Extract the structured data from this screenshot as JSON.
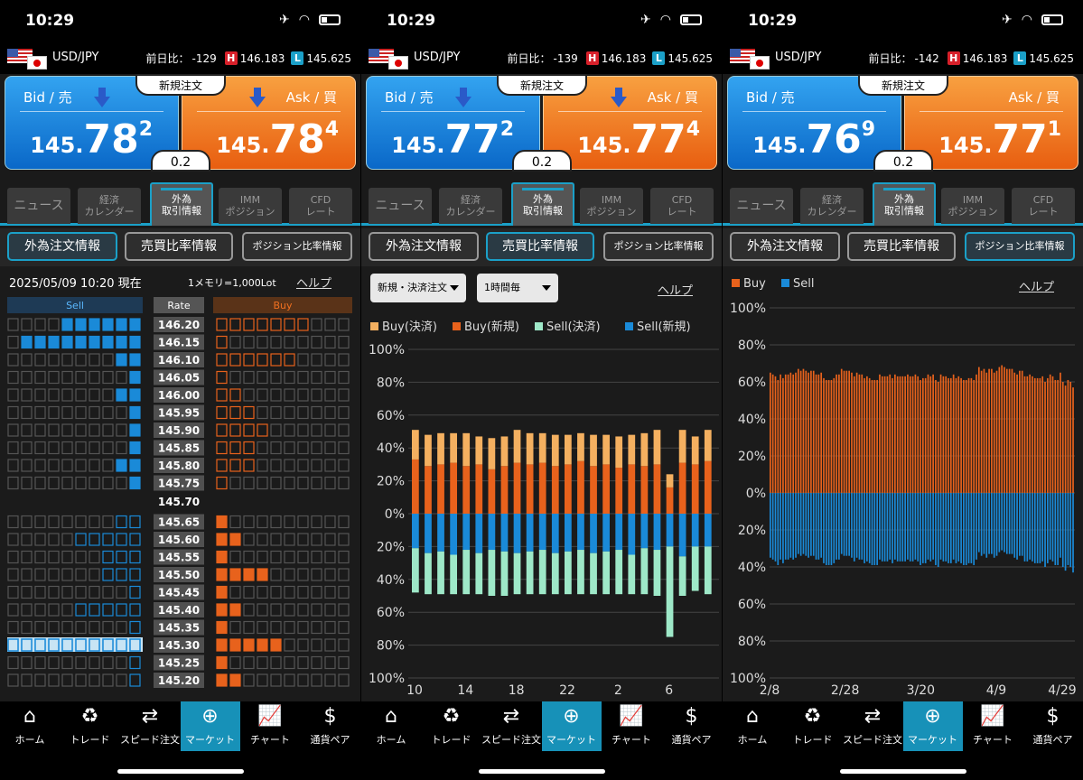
{
  "status_time": "10:29",
  "pair": "USD/JPY",
  "prev_label": "前日比：",
  "h_badge": "H",
  "l_badge": "L",
  "high": "146.183",
  "low": "145.625",
  "bid_label": "Bid / 売",
  "ask_label": "Ask / 買",
  "new_order": "新規注文",
  "spread": "0.2",
  "tabs": [
    "ニュース",
    "経済\nカレンダー",
    "外為\n取引情報",
    "IMM\nポジション",
    "CFD\nレート"
  ],
  "subtabs": [
    "外為注文情報",
    "売買比率情報",
    "ポジション比率情報"
  ],
  "help": "ヘルプ",
  "nav": [
    "ホーム",
    "トレード",
    "スピード注文",
    "マーケット",
    "チャート",
    "通貨ペア"
  ],
  "colors": {
    "orange": "#e8621c",
    "blue": "#1a8ad8",
    "light_orange": "#f4b060",
    "light_green": "#9ee8c8",
    "accent": "#1ba0c8"
  },
  "panels": [
    {
      "prev": "-129",
      "bid": {
        "big": "145.",
        "mid": "78",
        "small": "2"
      },
      "ask": {
        "big": "145.",
        "mid": "78",
        "small": "4"
      },
      "active_sub": 0
    },
    {
      "prev": "-139",
      "bid": {
        "big": "145.",
        "mid": "77",
        "small": "2"
      },
      "ask": {
        "big": "145.",
        "mid": "77",
        "small": "4"
      },
      "active_sub": 1
    },
    {
      "prev": "-142",
      "bid": {
        "big": "145.",
        "mid": "76",
        "small": "9"
      },
      "ask": {
        "big": "145.",
        "mid": "77",
        "small": "1"
      },
      "active_sub": 2
    }
  ],
  "ladder": {
    "datetime": "2025/05/09 10:20 現在",
    "memo": "1メモリ=1,000Lot",
    "sell_label": "Sell",
    "rate_label": "Rate",
    "buy_label": "Buy",
    "current_rate": "145.70",
    "rows_top": [
      {
        "rate": "146.20",
        "sell": 6,
        "sell_style": "filled",
        "buy": 7
      },
      {
        "rate": "146.15",
        "sell": 9,
        "sell_style": "filled",
        "buy": 1
      },
      {
        "rate": "146.10",
        "sell": 2,
        "sell_style": "filled",
        "buy": 6
      },
      {
        "rate": "146.05",
        "sell": 1,
        "sell_style": "filled",
        "buy": 1
      },
      {
        "rate": "146.00",
        "sell": 2,
        "sell_style": "filled",
        "buy": 2
      },
      {
        "rate": "145.95",
        "sell": 1,
        "sell_style": "filled",
        "buy": 3
      },
      {
        "rate": "145.90",
        "sell": 1,
        "sell_style": "filled",
        "buy": 4
      },
      {
        "rate": "145.85",
        "sell": 1,
        "sell_style": "filled",
        "buy": 3
      },
      {
        "rate": "145.80",
        "sell": 2,
        "sell_style": "filled",
        "buy": 3
      },
      {
        "rate": "145.75",
        "sell": 1,
        "sell_style": "filled",
        "buy": 1
      }
    ],
    "rows_bottom": [
      {
        "rate": "145.65",
        "sell": 2,
        "buy": 1
      },
      {
        "rate": "145.60",
        "sell": 5,
        "buy": 2
      },
      {
        "rate": "145.55",
        "sell": 3,
        "buy": 1
      },
      {
        "rate": "145.50",
        "sell": 3,
        "buy": 4
      },
      {
        "rate": "145.45",
        "sell": 1,
        "buy": 1
      },
      {
        "rate": "145.40",
        "sell": 5,
        "buy": 2
      },
      {
        "rate": "145.35",
        "sell": 1,
        "buy": 1
      },
      {
        "rate": "145.30",
        "sell": 15,
        "buy": 5,
        "sell_highlight": true
      },
      {
        "rate": "145.25",
        "sell": 1,
        "buy": 1
      },
      {
        "rate": "145.20",
        "sell": 1,
        "buy": 2
      }
    ]
  },
  "ratio": {
    "filter1": "新規・決済注文",
    "filter2": "1時間毎",
    "legend": [
      "Buy(決済)",
      "Buy(新規)",
      "Sell(決済)",
      "Sell(新規)"
    ]
  },
  "position": {
    "legend": [
      "Buy",
      "Sell"
    ]
  },
  "chart_data": [
    {
      "type": "bar",
      "title": "売買比率情報",
      "yticks": [
        "100%",
        "80%",
        "60%",
        "40%",
        "20%",
        "0%",
        "20%",
        "40%",
        "60%",
        "80%",
        "100%"
      ],
      "xticks": [
        "10",
        "14",
        "18",
        "22",
        "2",
        "6"
      ],
      "series": [
        {
          "name": "Buy(決済)",
          "values": [
            18,
            19,
            19,
            18,
            20,
            17,
            19,
            18,
            20,
            19,
            18,
            19,
            18,
            17,
            19,
            18,
            19,
            18,
            20,
            21,
            8,
            20,
            17,
            19
          ]
        },
        {
          "name": "Buy(新規)",
          "values": [
            33,
            29,
            30,
            31,
            29,
            30,
            27,
            29,
            31,
            30,
            31,
            29,
            30,
            32,
            29,
            30,
            28,
            30,
            29,
            30,
            16,
            31,
            30,
            32
          ]
        },
        {
          "name": "Sell(決済)",
          "values": [
            -27,
            -25,
            -26,
            -24,
            -27,
            -25,
            -28,
            -27,
            -25,
            -26,
            -27,
            -25,
            -26,
            -27,
            -25,
            -26,
            -27,
            -24,
            -28,
            -28,
            -55,
            -24,
            -27,
            -29
          ]
        },
        {
          "name": "Sell(新規)",
          "values": [
            -21,
            -24,
            -23,
            -25,
            -22,
            -24,
            -22,
            -23,
            -24,
            -23,
            -22,
            -24,
            -23,
            -22,
            -24,
            -23,
            -22,
            -25,
            -21,
            -22,
            -20,
            -26,
            -20,
            -20
          ]
        }
      ]
    },
    {
      "type": "bar",
      "title": "ポジション比率情報",
      "yticks": [
        "100%",
        "80%",
        "60%",
        "40%",
        "20%",
        "0%",
        "20%",
        "40%",
        "60%",
        "80%",
        "100%"
      ],
      "xticks": [
        "2/8",
        "2/28",
        "3/20",
        "4/9",
        "4/29"
      ],
      "series": [
        {
          "name": "Buy",
          "values": [
            65,
            64,
            63,
            61,
            64,
            62,
            64,
            64,
            65,
            64,
            65,
            67,
            66,
            67,
            66,
            65,
            66,
            66,
            64,
            64,
            65,
            62,
            61,
            61,
            61,
            62,
            64,
            64,
            67,
            66,
            66,
            66,
            65,
            63,
            65,
            64,
            64,
            62,
            63,
            62,
            61,
            61,
            61,
            64,
            63,
            63,
            63,
            64,
            62,
            64,
            63,
            63,
            63,
            63,
            64,
            63,
            63,
            64,
            63,
            61,
            62,
            62,
            64,
            63,
            64,
            61,
            60,
            64,
            63,
            63,
            62,
            62,
            64,
            62,
            63,
            62,
            61,
            61,
            62,
            62,
            61,
            64,
            68,
            66,
            67,
            65,
            67,
            67,
            65,
            66,
            68,
            69,
            68,
            67,
            67,
            67,
            65,
            64,
            66,
            66,
            63,
            63,
            64,
            63,
            62,
            62,
            62,
            63,
            60,
            62,
            64,
            63,
            61,
            61,
            65,
            60,
            58,
            61,
            60,
            57
          ]
        },
        {
          "name": "Sell",
          "values": [
            -35,
            -36,
            -37,
            -39,
            -36,
            -38,
            -36,
            -36,
            -35,
            -36,
            -35,
            -33,
            -34,
            -33,
            -34,
            -35,
            -34,
            -34,
            -36,
            -36,
            -35,
            -38,
            -39,
            -39,
            -39,
            -38,
            -36,
            -36,
            -33,
            -34,
            -34,
            -34,
            -35,
            -37,
            -35,
            -36,
            -36,
            -38,
            -37,
            -38,
            -39,
            -39,
            -39,
            -36,
            -37,
            -37,
            -37,
            -36,
            -38,
            -36,
            -37,
            -37,
            -37,
            -37,
            -36,
            -37,
            -37,
            -36,
            -37,
            -39,
            -38,
            -38,
            -36,
            -37,
            -36,
            -39,
            -40,
            -36,
            -37,
            -37,
            -38,
            -38,
            -36,
            -38,
            -37,
            -38,
            -39,
            -39,
            -38,
            -38,
            -39,
            -36,
            -32,
            -34,
            -33,
            -35,
            -33,
            -33,
            -35,
            -34,
            -32,
            -31,
            -32,
            -33,
            -33,
            -33,
            -35,
            -36,
            -34,
            -34,
            -37,
            -37,
            -36,
            -37,
            -38,
            -38,
            -38,
            -37,
            -40,
            -38,
            -36,
            -37,
            -39,
            -39,
            -35,
            -40,
            -42,
            -39,
            -40,
            -43
          ]
        }
      ]
    }
  ]
}
